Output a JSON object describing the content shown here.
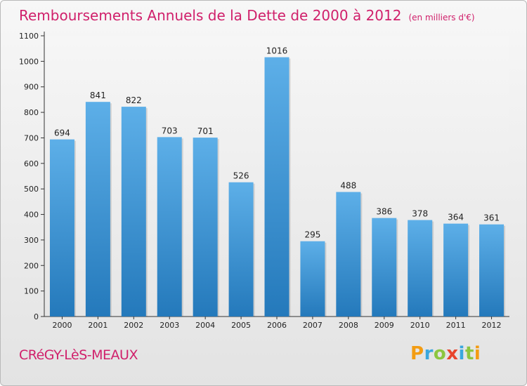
{
  "title": "Remboursements Annuels de la Dette de 2000 à 2012",
  "unit_note": "(en milliers d'€)",
  "commune": "CRéGY-LèS-MEAUX",
  "logo": {
    "letters": [
      "P",
      "r",
      "o",
      "x",
      "i",
      "t",
      "i"
    ],
    "colors": [
      "#f39c12",
      "#3aa7dd",
      "#8cc63f",
      "#e8452c",
      "#3aa7dd",
      "#8cc63f",
      "#f39c12"
    ]
  },
  "colors": {
    "accent": "#d0206b",
    "bar_top": "#5dafe8",
    "bar_bottom": "#2479bb"
  },
  "chart_data": {
    "type": "bar",
    "title": "Remboursements Annuels de la Dette de 2000 à 2012",
    "xlabel": "",
    "ylabel": "",
    "categories": [
      "2000",
      "2001",
      "2002",
      "2003",
      "2004",
      "2005",
      "2006",
      "2007",
      "2008",
      "2009",
      "2010",
      "2011",
      "2012"
    ],
    "values": [
      694,
      841,
      822,
      703,
      701,
      526,
      1016,
      295,
      488,
      386,
      378,
      364,
      361
    ],
    "ylim": [
      0,
      1100
    ],
    "yticks": [
      0,
      100,
      200,
      300,
      400,
      500,
      600,
      700,
      800,
      900,
      1000,
      1100
    ],
    "grid": false
  }
}
